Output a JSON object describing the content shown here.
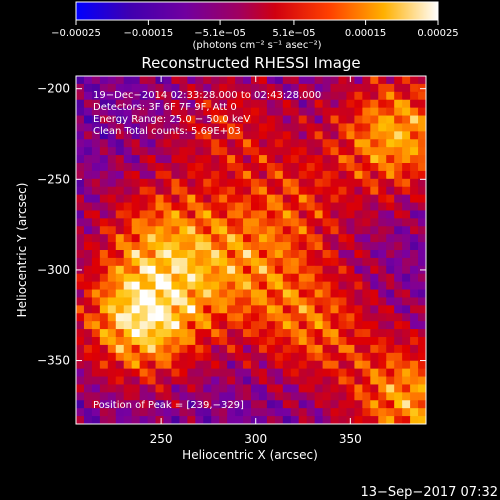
{
  "chart_data": {
    "type": "heatmap",
    "title": "Reconstructed RHESSI Image",
    "xlabel": "Heliocentric X (arcsec)",
    "ylabel": "Heliocentric Y (arcsec)",
    "xlim": [
      205,
      390
    ],
    "ylim": [
      -385,
      -193
    ],
    "x_ticks": [
      {
        "v": 250,
        "label": "250"
      },
      {
        "v": 300,
        "label": "300"
      },
      {
        "v": 350,
        "label": "350"
      }
    ],
    "y_ticks": [
      {
        "v": -200,
        "label": "−200"
      },
      {
        "v": -250,
        "label": "−250"
      },
      {
        "v": -300,
        "label": "−300"
      },
      {
        "v": -350,
        "label": "−350"
      }
    ],
    "colorbar": {
      "range": [
        -0.00025,
        0.00025
      ],
      "ticks": [
        {
          "v": -0.00025,
          "label": "−0.00025"
        },
        {
          "v": -0.00015,
          "label": "−0.00015"
        },
        {
          "v": -5.1e-05,
          "label": "−5.1e−05"
        },
        {
          "v": 5.1e-05,
          "label": "5.1e−05"
        },
        {
          "v": 0.00015,
          "label": "0.00015"
        },
        {
          "v": 0.00025,
          "label": "0.00025"
        }
      ],
      "units": "(photons cm⁻² s⁻¹ asec⁻²)",
      "colormap": [
        "#0000ff",
        "#4b00a0",
        "#7a00a0",
        "#b00040",
        "#e00000",
        "#ff7000",
        "#ffc000",
        "#ffffff"
      ]
    },
    "annotations": [
      "19−Dec−2014 02:33:28.000 to 02:43:28.000",
      "Detectors: 3F 6F 7F 9F, Att 0",
      "Energy Range: 25.0 − 50.0 keV",
      "Clean      Total counts: 5.69E+03"
    ],
    "peak_label": "Position of Peak = [239,−329]",
    "peak": [
      239,
      -329
    ],
    "hotspots": [
      {
        "x": 240,
        "y": -328,
        "intensity": 1.0
      },
      {
        "x": 375,
        "y": -225,
        "intensity": 0.85
      },
      {
        "x": 382,
        "y": -372,
        "intensity": 0.8
      },
      {
        "x": 330,
        "y": -330,
        "intensity": 0.6
      },
      {
        "x": 250,
        "y": -280,
        "intensity": 0.6
      },
      {
        "x": 290,
        "y": -300,
        "intensity": 0.5
      },
      {
        "x": 285,
        "y": -220,
        "intensity": 0.4
      },
      {
        "x": 320,
        "y": -265,
        "intensity": 0.45
      }
    ]
  },
  "footer": {
    "timestamp": "13−Sep−2017 07:32"
  }
}
